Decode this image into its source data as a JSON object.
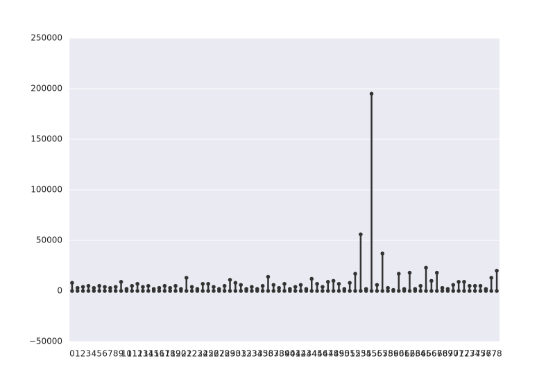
{
  "chart_data": {
    "type": "strip",
    "categories": [
      "0",
      "1",
      "2",
      "3",
      "4",
      "5",
      "6",
      "7",
      "8",
      "9",
      "10",
      "11",
      "12",
      "13",
      "14",
      "15",
      "16",
      "17",
      "18",
      "19",
      "20",
      "21",
      "22",
      "23",
      "24",
      "25",
      "26",
      "27",
      "28",
      "29",
      "30",
      "31",
      "32",
      "33",
      "34",
      "35",
      "36",
      "37",
      "38",
      "39",
      "40",
      "41",
      "42",
      "43",
      "44",
      "45",
      "46",
      "47",
      "48",
      "49",
      "50",
      "51",
      "52",
      "53",
      "54",
      "55",
      "56",
      "57",
      "58",
      "59",
      "60",
      "61",
      "62",
      "63",
      "64",
      "65",
      "66",
      "67",
      "68",
      "69",
      "70",
      "71",
      "72",
      "73",
      "74",
      "75",
      "76",
      "77",
      "78"
    ],
    "values": [
      8000,
      3000,
      4000,
      5000,
      3000,
      5000,
      4000,
      3000,
      4000,
      9000,
      2000,
      5000,
      7000,
      4000,
      5000,
      2000,
      3000,
      5000,
      3000,
      5000,
      2000,
      13000,
      4000,
      2000,
      7000,
      7000,
      4000,
      2000,
      5000,
      11000,
      8000,
      6000,
      2000,
      4000,
      2000,
      5000,
      14000,
      6000,
      3000,
      7000,
      2000,
      4000,
      6000,
      2000,
      12000,
      7000,
      4000,
      9000,
      10000,
      7000,
      2000,
      8000,
      17000,
      56000,
      2000,
      195000,
      6000,
      37000,
      3000,
      1000,
      17000,
      2000,
      18000,
      2000,
      5000,
      23000,
      10000,
      18000,
      3000,
      2000,
      6000,
      9000,
      9000,
      5000,
      5000,
      5000,
      2000,
      13000,
      20000
    ],
    "color": "#333333",
    "ylim": [
      -50000,
      250000
    ],
    "yticks": [
      {
        "value": -50000,
        "label": "−50000"
      },
      0,
      50000,
      100000,
      150000,
      200000,
      250000
    ],
    "grid": true
  }
}
